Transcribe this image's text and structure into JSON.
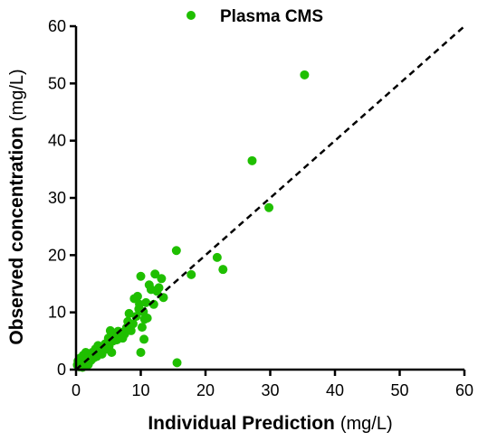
{
  "chart_data": {
    "type": "scatter",
    "xlabel": "Individual Prediction",
    "xlabel_unit": "(mg/L)",
    "ylabel": "Observed concentration",
    "ylabel_unit": "(mg/L)",
    "xlim": [
      0,
      60
    ],
    "ylim": [
      0,
      60
    ],
    "xticks": [
      "0",
      "10",
      "20",
      "30",
      "40",
      "50",
      "60"
    ],
    "yticks": [
      "0",
      "10",
      "20",
      "30",
      "40",
      "50",
      "60"
    ],
    "grid": false,
    "legend": "top-center",
    "identity_line": true,
    "colors": {
      "points": "#1fbf00",
      "identity_line": "#000000",
      "axes": "#000000"
    },
    "series": [
      {
        "name": "Plasma CMS",
        "points": [
          [
            0.2,
            0.8
          ],
          [
            0.3,
            1.5
          ],
          [
            0.5,
            0.5
          ],
          [
            0.6,
            2.0
          ],
          [
            0.8,
            1.2
          ],
          [
            1.0,
            0.4
          ],
          [
            1.1,
            2.5
          ],
          [
            1.3,
            1.0
          ],
          [
            1.5,
            3.0
          ],
          [
            1.7,
            1.8
          ],
          [
            1.9,
            0.9
          ],
          [
            2.0,
            2.6
          ],
          [
            2.3,
            1.6
          ],
          [
            2.5,
            3.0
          ],
          [
            2.8,
            2.1
          ],
          [
            3.0,
            3.6
          ],
          [
            3.2,
            2.3
          ],
          [
            3.4,
            4.2
          ],
          [
            3.6,
            2.9
          ],
          [
            3.8,
            3.4
          ],
          [
            4.0,
            2.7
          ],
          [
            4.3,
            3.9
          ],
          [
            4.5,
            4.5
          ],
          [
            4.8,
            3.6
          ],
          [
            5.0,
            5.5
          ],
          [
            5.1,
            4.1
          ],
          [
            5.3,
            6.8
          ],
          [
            5.5,
            3.0
          ],
          [
            5.7,
            5.0
          ],
          [
            6.0,
            6.0
          ],
          [
            6.3,
            5.2
          ],
          [
            6.5,
            6.7
          ],
          [
            6.8,
            5.8
          ],
          [
            7.0,
            6.5
          ],
          [
            7.2,
            5.5
          ],
          [
            7.5,
            6.2
          ],
          [
            7.8,
            7.3
          ],
          [
            8.0,
            8.4
          ],
          [
            8.2,
            9.8
          ],
          [
            8.5,
            6.8
          ],
          [
            8.8,
            8.0
          ],
          [
            9.0,
            12.4
          ],
          [
            9.3,
            9.3
          ],
          [
            9.5,
            12.8
          ],
          [
            9.7,
            10.6
          ],
          [
            9.8,
            11.4
          ],
          [
            10.0,
            16.3
          ],
          [
            10.0,
            3.0
          ],
          [
            10.2,
            7.4
          ],
          [
            10.4,
            10.1
          ],
          [
            10.5,
            5.3
          ],
          [
            10.6,
            8.8
          ],
          [
            10.8,
            11.7
          ],
          [
            11.0,
            9.0
          ],
          [
            11.3,
            14.8
          ],
          [
            11.6,
            14.0
          ],
          [
            12.0,
            11.4
          ],
          [
            12.2,
            16.7
          ],
          [
            12.5,
            13.7
          ],
          [
            12.8,
            14.3
          ],
          [
            13.2,
            15.9
          ],
          [
            13.5,
            12.6
          ],
          [
            15.5,
            20.8
          ],
          [
            15.6,
            1.2
          ],
          [
            17.8,
            16.6
          ],
          [
            21.8,
            19.6
          ],
          [
            22.7,
            17.5
          ],
          [
            27.2,
            36.5
          ],
          [
            29.8,
            28.3
          ],
          [
            35.3,
            51.5
          ]
        ]
      }
    ]
  }
}
